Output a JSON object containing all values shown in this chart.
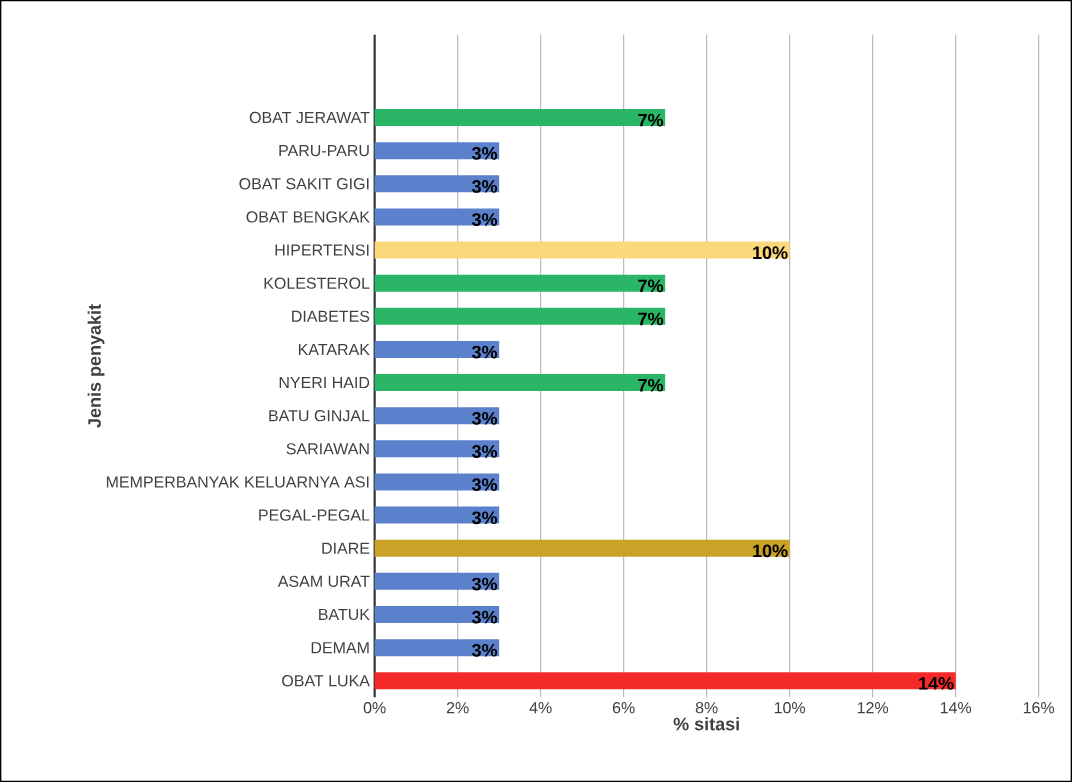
{
  "chart_data": {
    "type": "bar",
    "orientation": "horizontal",
    "xlabel": "% sitasi",
    "ylabel": "Jenis penyakit",
    "categories": [
      "OBAT JERAWAT",
      "PARU-PARU",
      "OBAT SAKIT GIGI",
      "OBAT BENGKAK",
      "HIPERTENSI",
      "KOLESTEROL",
      "DIABETES",
      "KATARAK",
      "NYERI HAID",
      "BATU GINJAL",
      "SARIAWAN",
      "MEMPERBANYAK KELUARNYA ASI",
      "PEGAL-PEGAL",
      "DIARE",
      "ASAM URAT",
      "BATUK",
      "DEMAM",
      "OBAT LUKA"
    ],
    "values": [
      7,
      3,
      3,
      3,
      10,
      7,
      7,
      3,
      7,
      3,
      3,
      3,
      3,
      10,
      3,
      3,
      3,
      14
    ],
    "value_labels": [
      "7%",
      "3%",
      "3%",
      "3%",
      "10%",
      "7%",
      "7%",
      "3%",
      "7%",
      "3%",
      "3%",
      "3%",
      "3%",
      "10%",
      "3%",
      "3%",
      "3%",
      "14%"
    ],
    "colors": [
      "#2bb566",
      "#5b80cc",
      "#5b80cc",
      "#5b80cc",
      "#fbd97a",
      "#2bb566",
      "#2bb566",
      "#5b80cc",
      "#2bb566",
      "#5b80cc",
      "#5b80cc",
      "#5b80cc",
      "#5b80cc",
      "#c9a227",
      "#5b80cc",
      "#5b80cc",
      "#5b80cc",
      "#f42a2a"
    ],
    "xlim": [
      0,
      16
    ],
    "xticks": [
      {
        "value": 0,
        "label": "0%"
      },
      {
        "value": 2,
        "label": "2%"
      },
      {
        "value": 4,
        "label": "4%"
      },
      {
        "value": 6,
        "label": "6%"
      },
      {
        "value": 8,
        "label": "8%"
      },
      {
        "value": 10,
        "label": "10%"
      },
      {
        "value": 12,
        "label": "12%"
      },
      {
        "value": 14,
        "label": "14%"
      },
      {
        "value": 16,
        "label": "16%"
      }
    ],
    "grid": "x"
  }
}
